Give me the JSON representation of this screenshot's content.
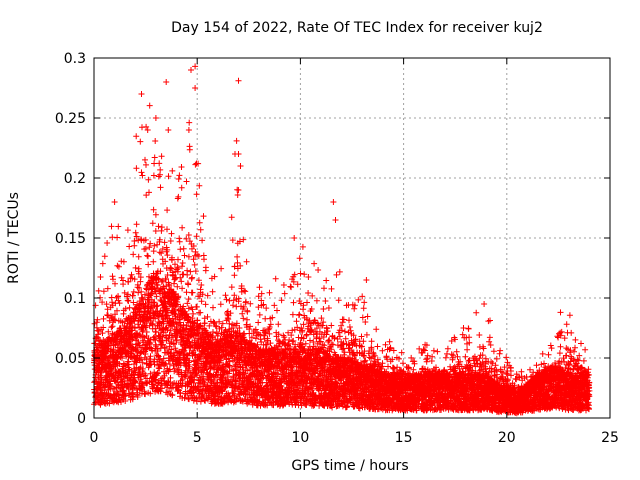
{
  "chart_data": {
    "type": "scatter",
    "title": "Day 154 of 2022, Rate Of TEC Index for receiver kuj2",
    "xlabel": "GPS time / hours",
    "ylabel": "ROTI / TECUs",
    "xlim": [
      0,
      25
    ],
    "ylim": [
      0,
      0.3
    ],
    "xticks": [
      0,
      5,
      10,
      15,
      20,
      25
    ],
    "yticks": [
      0,
      0.05,
      0.1,
      0.15,
      0.2,
      0.25,
      0.3
    ],
    "grid": true,
    "marker": "plus",
    "series_color": "#ff0000",
    "points_per_hour": 360,
    "envelope": {
      "x": [
        0.0,
        0.5,
        1.0,
        1.5,
        2.0,
        2.5,
        3.0,
        3.5,
        4.0,
        4.5,
        5.0,
        5.5,
        6.0,
        6.5,
        7.0,
        7.5,
        8.0,
        8.5,
        9.0,
        9.5,
        10.0,
        10.5,
        11.0,
        11.5,
        12.0,
        12.5,
        13.0,
        13.5,
        14.0,
        14.5,
        15.0,
        15.5,
        16.0,
        16.5,
        17.0,
        17.5,
        18.0,
        18.5,
        19.0,
        19.5,
        20.0,
        20.5,
        21.0,
        21.5,
        22.0,
        22.5,
        23.0,
        23.5,
        24.0
      ],
      "typical": [
        0.04,
        0.045,
        0.05,
        0.055,
        0.065,
        0.075,
        0.085,
        0.08,
        0.07,
        0.06,
        0.055,
        0.05,
        0.045,
        0.05,
        0.05,
        0.045,
        0.04,
        0.04,
        0.04,
        0.04,
        0.04,
        0.04,
        0.04,
        0.035,
        0.035,
        0.035,
        0.03,
        0.03,
        0.025,
        0.025,
        0.025,
        0.025,
        0.025,
        0.025,
        0.025,
        0.025,
        0.025,
        0.025,
        0.025,
        0.02,
        0.018,
        0.015,
        0.02,
        0.025,
        0.03,
        0.03,
        0.025,
        0.025,
        0.025
      ],
      "max": [
        0.1,
        0.135,
        0.18,
        0.13,
        0.27,
        0.25,
        0.28,
        0.22,
        0.2,
        0.29,
        0.23,
        0.13,
        0.12,
        0.14,
        0.28,
        0.12,
        0.11,
        0.12,
        0.12,
        0.11,
        0.15,
        0.13,
        0.14,
        0.11,
        0.13,
        0.1,
        0.12,
        0.09,
        0.06,
        0.07,
        0.06,
        0.05,
        0.07,
        0.06,
        0.06,
        0.07,
        0.07,
        0.09,
        0.1,
        0.06,
        0.05,
        0.04,
        0.04,
        0.05,
        0.06,
        0.07,
        0.09,
        0.065,
        0.06
      ]
    },
    "spikes": [
      {
        "x": 2.3,
        "y": 0.27
      },
      {
        "x": 3.5,
        "y": 0.28
      },
      {
        "x": 4.7,
        "y": 0.29
      },
      {
        "x": 4.9,
        "y": 0.293
      },
      {
        "x": 4.9,
        "y": 0.275
      },
      {
        "x": 7.0,
        "y": 0.281
      },
      {
        "x": 7.0,
        "y": 0.22
      },
      {
        "x": 7.1,
        "y": 0.21
      },
      {
        "x": 11.6,
        "y": 0.18
      },
      {
        "x": 11.7,
        "y": 0.165
      },
      {
        "x": 1.0,
        "y": 0.18
      },
      {
        "x": 3.0,
        "y": 0.25
      },
      {
        "x": 3.6,
        "y": 0.24
      },
      {
        "x": 2.6,
        "y": 0.24
      },
      {
        "x": 4.6,
        "y": 0.24
      },
      {
        "x": 9.7,
        "y": 0.15
      },
      {
        "x": 13.2,
        "y": 0.115
      },
      {
        "x": 18.9,
        "y": 0.095
      },
      {
        "x": 22.6,
        "y": 0.088
      },
      {
        "x": 17.9,
        "y": 0.075
      }
    ]
  }
}
